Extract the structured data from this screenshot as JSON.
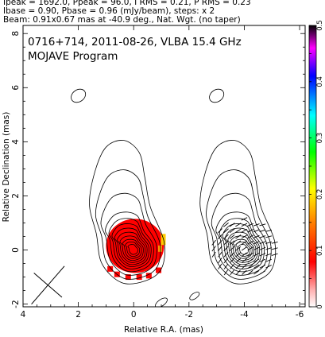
{
  "header_lines": [
    "Ipeak = 1692.0, Ppeak = 96.0, I RMS = 0.21, P RMS = 0.23",
    "Ibase = 0.90, Pbase = 0.96 (mJy/beam), steps: x 2",
    "Beam: 0.91x0.67 mas at -40.9 deg., Nat. Wgt. (no taper)"
  ],
  "panel_title": [
    "0716+714, 2011-08-26, VLBA 15.4 GHz",
    "MOJAVE Program"
  ],
  "chart_data": {
    "type": "heatmap",
    "xlabel": "Relative R.A. (mas)",
    "ylabel": "Relative Declination (mas)",
    "xlim": [
      4,
      -6.2
    ],
    "ylim": [
      -2.1,
      8.3
    ],
    "x_ticks": [
      4,
      2,
      0,
      -2,
      -4,
      -6
    ],
    "y_ticks": [
      8,
      6,
      4,
      2,
      0,
      -2
    ],
    "colorbar": {
      "range": [
        0,
        0.5
      ],
      "ticks": [
        0,
        0.1,
        0.2,
        0.3,
        0.4,
        0.5
      ],
      "colors_low_to_high": [
        "#ffffff",
        "#ff0000",
        "#ffff00",
        "#00ff00",
        "#00ffff",
        "#0000ff",
        "#ff00ff",
        "#000000"
      ]
    },
    "panels": [
      {
        "name": "total intensity with fractional polarization",
        "x_offset_mas": 0,
        "contours_present": true,
        "color_fill": true,
        "beam_marker": {
          "x": 3.1,
          "y": -1.3,
          "major_mas": 0.91,
          "minor_mas": 0.67,
          "pa_deg": -40.9
        }
      },
      {
        "name": "total intensity with polarization vectors",
        "x_offset_mas": -4,
        "contours_present": true,
        "evpa_ticks": true
      }
    ],
    "core_position": {
      "x": 0,
      "y": 0
    }
  }
}
